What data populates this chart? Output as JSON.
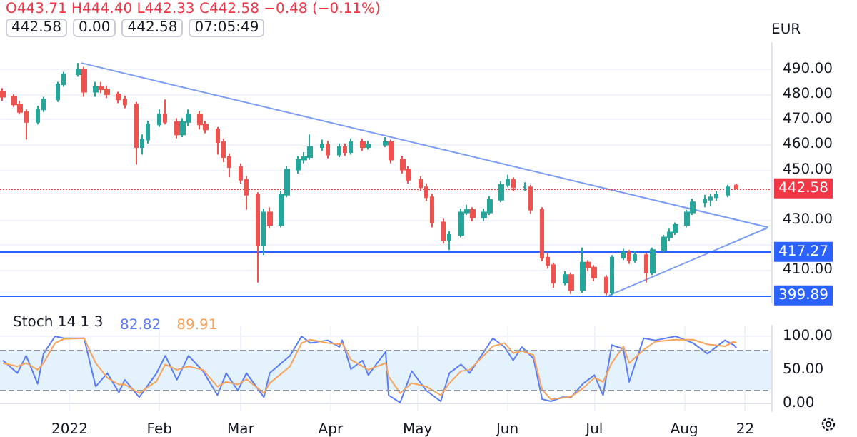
{
  "chart_data": [
    {
      "type": "candlestick",
      "ylabel": "EUR",
      "annotations": [
        "O443.71 H444.40 L442.33 C442.58 −0.48 (−0.11%)",
        "442.58",
        "0.00",
        "442.58",
        "07:05:49"
      ],
      "x": [
        "2021-12-09",
        "2021-12-13",
        "2021-12-15",
        "2021-12-17",
        "2021-12-21",
        "2021-12-23",
        "2021-12-28",
        "2021-12-30",
        "2022-01-04",
        "2022-01-06",
        "2022-01-10",
        "2022-01-12",
        "2022-01-14",
        "2022-01-18",
        "2022-01-20",
        "2022-01-24",
        "2022-01-26",
        "2022-01-28",
        "2022-02-01",
        "2022-02-03",
        "2022-02-07",
        "2022-02-09",
        "2022-02-11",
        "2022-02-15",
        "2022-02-17",
        "2022-02-21",
        "2022-02-23",
        "2022-02-25",
        "2022-03-01",
        "2022-03-03",
        "2022-03-07",
        "2022-03-09",
        "2022-03-11",
        "2022-03-15",
        "2022-03-17",
        "2022-03-21",
        "2022-03-23",
        "2022-03-25",
        "2022-03-29",
        "2022-03-31",
        "2022-04-04",
        "2022-04-06",
        "2022-04-08",
        "2022-04-12",
        "2022-04-14",
        "2022-04-20",
        "2022-04-22",
        "2022-04-26",
        "2022-04-28",
        "2022-05-02",
        "2022-05-04",
        "2022-05-06",
        "2022-05-10",
        "2022-05-12",
        "2022-05-16",
        "2022-05-18",
        "2022-05-20",
        "2022-05-24",
        "2022-05-26",
        "2022-05-30",
        "2022-06-01",
        "2022-06-03",
        "2022-06-07",
        "2022-06-09",
        "2022-06-13",
        "2022-06-15",
        "2022-06-17",
        "2022-06-21",
        "2022-06-23",
        "2022-06-27",
        "2022-06-29",
        "2022-07-01",
        "2022-07-05",
        "2022-07-07",
        "2022-07-11",
        "2022-07-13",
        "2022-07-15",
        "2022-07-19",
        "2022-07-21",
        "2022-07-25",
        "2022-07-27",
        "2022-07-29",
        "2022-08-02",
        "2022-08-04",
        "2022-08-08",
        "2022-08-10",
        "2022-08-12",
        "2022-08-16",
        "2022-08-19"
      ],
      "ohlc": [
        [
          481,
          482.5,
          477.5,
          479
        ],
        [
          479,
          480,
          475,
          476
        ],
        [
          476,
          477.5,
          472,
          473
        ],
        [
          473,
          474,
          462,
          469
        ],
        [
          469,
          475.5,
          468,
          474
        ],
        [
          474,
          479,
          473,
          478
        ],
        [
          478,
          485,
          477,
          484
        ],
        [
          484,
          489,
          483,
          488
        ],
        [
          488,
          492.5,
          487,
          490
        ],
        [
          490,
          491,
          479,
          481
        ],
        [
          481,
          485,
          479,
          483
        ],
        [
          483,
          485,
          480.5,
          482
        ],
        [
          482,
          483.5,
          478.5,
          480
        ],
        [
          480,
          481,
          476.5,
          478
        ],
        [
          478,
          479.5,
          474.5,
          476
        ],
        [
          476,
          477,
          452,
          459
        ],
        [
          459,
          464,
          456,
          462
        ],
        [
          462,
          469.5,
          460.5,
          468
        ],
        [
          468,
          474,
          467,
          472
        ],
        [
          472,
          478,
          468,
          469
        ],
        [
          469,
          470.5,
          462.5,
          464
        ],
        [
          464,
          470.5,
          463,
          469
        ],
        [
          469,
          474,
          467.5,
          472
        ],
        [
          472,
          473.5,
          466,
          468
        ],
        [
          468,
          469.5,
          464.5,
          466
        ],
        [
          466,
          467,
          456,
          461
        ],
        [
          461,
          462.5,
          453,
          455
        ],
        [
          455,
          456.5,
          447,
          451
        ],
        [
          451,
          452.5,
          444.5,
          446
        ],
        [
          446,
          447.5,
          434,
          440
        ],
        [
          440,
          441,
          405,
          420
        ],
        [
          420,
          434.5,
          416,
          433
        ],
        [
          433,
          435,
          426.5,
          428
        ],
        [
          428,
          441.5,
          427,
          440
        ],
        [
          440,
          451.5,
          439,
          450
        ],
        [
          450,
          455.5,
          448.5,
          454
        ],
        [
          454,
          457,
          452.5,
          455
        ],
        [
          455,
          464,
          454,
          459
        ],
        [
          459,
          462,
          457.5,
          460
        ],
        [
          460,
          461.5,
          454.5,
          456
        ],
        [
          456,
          460.5,
          455,
          459
        ],
        [
          459,
          460.5,
          455.5,
          457
        ],
        [
          457,
          462.5,
          456,
          461
        ],
        [
          461,
          462.5,
          457.5,
          459
        ],
        [
          459,
          461.5,
          458,
          460
        ],
        [
          460,
          463,
          459,
          461
        ],
        [
          461,
          462,
          452.5,
          454
        ],
        [
          454,
          455.5,
          448.5,
          450
        ],
        [
          450,
          451.5,
          444.5,
          446
        ],
        [
          446,
          447.5,
          441.5,
          443
        ],
        [
          443,
          444.5,
          437.5,
          439
        ],
        [
          439,
          440.5,
          427,
          429
        ],
        [
          429,
          430.5,
          420.5,
          422
        ],
        [
          422,
          425.5,
          418,
          424
        ],
        [
          424,
          434.5,
          423,
          433
        ],
        [
          433,
          436,
          432,
          434
        ],
        [
          434,
          435,
          429.5,
          431
        ],
        [
          431,
          434.5,
          429.5,
          433
        ],
        [
          433,
          439.5,
          432,
          438
        ],
        [
          438,
          445.5,
          437,
          444
        ],
        [
          444,
          448,
          443,
          446
        ],
        [
          446,
          447,
          441.5,
          443
        ],
        [
          443,
          445,
          441.5,
          443
        ],
        [
          443,
          444,
          432.5,
          434
        ],
        [
          434,
          435,
          413.5,
          415
        ],
        [
          415,
          417,
          410.5,
          412
        ],
        [
          412,
          413,
          403,
          405
        ],
        [
          405,
          409.5,
          404,
          408
        ],
        [
          408,
          409,
          400.5,
          402
        ],
        [
          402,
          419,
          401,
          413
        ],
        [
          413,
          414,
          409.5,
          411
        ],
        [
          411,
          412,
          405.5,
          407
        ],
        [
          407,
          408,
          399.89,
          401
        ],
        [
          401,
          416,
          400,
          415
        ],
        [
          415,
          418.5,
          414,
          417
        ],
        [
          417,
          418,
          412.5,
          414
        ],
        [
          414,
          417.5,
          413,
          416
        ],
        [
          416,
          417,
          405,
          409
        ],
        [
          409,
          419,
          408,
          418
        ],
        [
          418,
          424,
          417,
          423
        ],
        [
          423,
          426.5,
          421.5,
          425
        ],
        [
          425,
          429,
          424,
          428
        ],
        [
          428,
          434,
          427,
          433
        ],
        [
          433,
          438.5,
          432,
          437
        ],
        [
          437,
          440,
          435,
          438
        ],
        [
          438,
          440.5,
          435.5,
          439
        ],
        [
          439,
          441.5,
          437.5,
          440
        ],
        [
          440,
          444,
          439,
          443
        ],
        [
          443.71,
          444.4,
          442.33,
          442.58
        ]
      ],
      "series": [
        {
          "type": "line",
          "color": "#7b9cf4",
          "x": [
            "2022-01-05",
            "2022-08-30"
          ],
          "values": [
            492.5,
            427
          ]
        },
        {
          "type": "line",
          "color": "#7b9cf4",
          "x": [
            "2022-07-06",
            "2022-08-30"
          ],
          "values": [
            399.89,
            427
          ]
        }
      ],
      "marker": "none",
      "ref_lines": [
        {
          "axis": "y",
          "value": 442.58,
          "label": "442.58",
          "color": "#f23645",
          "line_style": "dotted"
        },
        {
          "axis": "y",
          "value": 417.27,
          "label": "417.27",
          "color": "#2962ff"
        },
        {
          "axis": "y",
          "value": 399.89,
          "label": "399.89",
          "color": "#2962ff"
        }
      ],
      "xlim": [
        "2021-12-08",
        "2022-08-31"
      ],
      "ylim": [
        397,
        500.5
      ],
      "yticks": [
        {
          "value": 410,
          "label": "410.00"
        },
        {
          "value": 420,
          "label": null
        },
        {
          "value": 430,
          "label": "430.00"
        },
        {
          "value": 450,
          "label": "450.00"
        },
        {
          "value": 460,
          "label": "460.00"
        },
        {
          "value": 470,
          "label": "470.00"
        },
        {
          "value": 480,
          "label": "480.00"
        },
        {
          "value": 490,
          "label": "490.00"
        }
      ],
      "grid": true,
      "tick_labels": "y"
    },
    {
      "type": "line",
      "title": "Stoch 14 1 3",
      "legend": "top left",
      "marker": "none",
      "series": [
        {
          "name": "82.82",
          "color": "#5b7cf6",
          "x": [
            "2021-12-09",
            "2021-12-14",
            "2021-12-17",
            "2021-12-21",
            "2021-12-23",
            "2021-12-27",
            "2021-12-30",
            "2022-01-06",
            "2022-01-10",
            "2022-01-14",
            "2022-01-18",
            "2022-01-20",
            "2022-01-25",
            "2022-01-31",
            "2022-02-03",
            "2022-02-07",
            "2022-02-11",
            "2022-02-16",
            "2022-02-21",
            "2022-02-24",
            "2022-02-28",
            "2022-03-03",
            "2022-03-09",
            "2022-03-11",
            "2022-03-18",
            "2022-03-22",
            "2022-03-25",
            "2022-03-31",
            "2022-04-04",
            "2022-04-05",
            "2022-04-08",
            "2022-04-12",
            "2022-04-14",
            "2022-04-20",
            "2022-04-21",
            "2022-04-25",
            "2022-04-29",
            "2022-05-04",
            "2022-05-09",
            "2022-05-12",
            "2022-05-16",
            "2022-05-19",
            "2022-05-27",
            "2022-05-31",
            "2022-06-03",
            "2022-06-06",
            "2022-06-10",
            "2022-06-13",
            "2022-06-16",
            "2022-06-20",
            "2022-06-23",
            "2022-06-27",
            "2022-07-01",
            "2022-07-04",
            "2022-07-07",
            "2022-07-11",
            "2022-07-13",
            "2022-07-18",
            "2022-07-22",
            "2022-07-29",
            "2022-08-04",
            "2022-08-09",
            "2022-08-15",
            "2022-08-18",
            "2022-08-19"
          ],
          "values": [
            64,
            45,
            71,
            29,
            74,
            100,
            97,
            97,
            25,
            45,
            16,
            35,
            9,
            45,
            71,
            35,
            71,
            48,
            12,
            45,
            19,
            45,
            9,
            45,
            71,
            100,
            90,
            94,
            84,
            94,
            51,
            64,
            42,
            77,
            12,
            1,
            48,
            19,
            3,
            45,
            58,
            45,
            97,
            84,
            64,
            84,
            67,
            6,
            3,
            9,
            9,
            29,
            42,
            12,
            87,
            81,
            32,
            97,
            94,
            100,
            90,
            74,
            94,
            87,
            82.82
          ]
        },
        {
          "name": "89.91",
          "color": "#f7a35c",
          "x": [
            "2021-12-09",
            "2021-12-14",
            "2021-12-17",
            "2021-12-21",
            "2021-12-23",
            "2021-12-27",
            "2021-12-30",
            "2022-01-06",
            "2022-01-10",
            "2022-01-14",
            "2022-01-18",
            "2022-01-20",
            "2022-01-25",
            "2022-01-31",
            "2022-02-03",
            "2022-02-07",
            "2022-02-11",
            "2022-02-16",
            "2022-02-21",
            "2022-02-24",
            "2022-02-28",
            "2022-03-03",
            "2022-03-09",
            "2022-03-11",
            "2022-03-18",
            "2022-03-22",
            "2022-03-25",
            "2022-03-31",
            "2022-04-04",
            "2022-04-05",
            "2022-04-08",
            "2022-04-12",
            "2022-04-14",
            "2022-04-20",
            "2022-04-21",
            "2022-04-25",
            "2022-04-29",
            "2022-05-04",
            "2022-05-09",
            "2022-05-12",
            "2022-05-16",
            "2022-05-19",
            "2022-05-27",
            "2022-05-31",
            "2022-06-03",
            "2022-06-06",
            "2022-06-10",
            "2022-06-13",
            "2022-06-16",
            "2022-06-20",
            "2022-06-23",
            "2022-06-27",
            "2022-07-01",
            "2022-07-04",
            "2022-07-07",
            "2022-07-11",
            "2022-07-13",
            "2022-07-18",
            "2022-07-22",
            "2022-07-29",
            "2022-08-04",
            "2022-08-09",
            "2022-08-15",
            "2022-08-18",
            "2022-08-19"
          ],
          "values": [
            60,
            55,
            60,
            50,
            60,
            90,
            96,
            97,
            60,
            38,
            28,
            28,
            15,
            33,
            58,
            50,
            55,
            50,
            25,
            32,
            28,
            36,
            15,
            30,
            55,
            90,
            95,
            90,
            88,
            90,
            65,
            55,
            50,
            60,
            40,
            15,
            30,
            25,
            12,
            30,
            48,
            50,
            85,
            90,
            75,
            78,
            72,
            20,
            6,
            8,
            10,
            22,
            38,
            32,
            60,
            85,
            60,
            80,
            92,
            95,
            95,
            88,
            85,
            92,
            89.91
          ]
        }
      ],
      "ref_lines": [
        {
          "axis": "y",
          "value": 80,
          "color": "#9598a1",
          "line_style": "dashed"
        },
        {
          "axis": "y",
          "value": 20,
          "color": "#9598a1",
          "line_style": "dashed"
        }
      ],
      "bands": [
        {
          "axis": "y",
          "from": 20,
          "to": 80,
          "color": "#e3f2fd"
        }
      ],
      "xlim": [
        "2021-12-08",
        "2022-08-31"
      ],
      "xticks": [
        {
          "value": "2022-01-01",
          "label": "2022"
        },
        {
          "value": "2022-02-01",
          "label": "Feb"
        },
        {
          "value": "2022-03-01",
          "label": "Mar"
        },
        {
          "value": "2022-04-01",
          "label": "Apr"
        },
        {
          "value": "2022-05-01",
          "label": "May"
        },
        {
          "value": "2022-06-01",
          "label": "Jun"
        },
        {
          "value": "2022-07-01",
          "label": "Jul"
        },
        {
          "value": "2022-08-01",
          "label": "Aug"
        },
        {
          "value": "2022-08-22",
          "label": "22"
        }
      ],
      "ylim": [
        -12,
        116
      ],
      "yticks": [
        {
          "value": 0,
          "label": "0.00"
        },
        {
          "value": 50,
          "label": "50.00"
        },
        {
          "value": 100,
          "label": "100.00"
        }
      ],
      "grid": true
    }
  ]
}
